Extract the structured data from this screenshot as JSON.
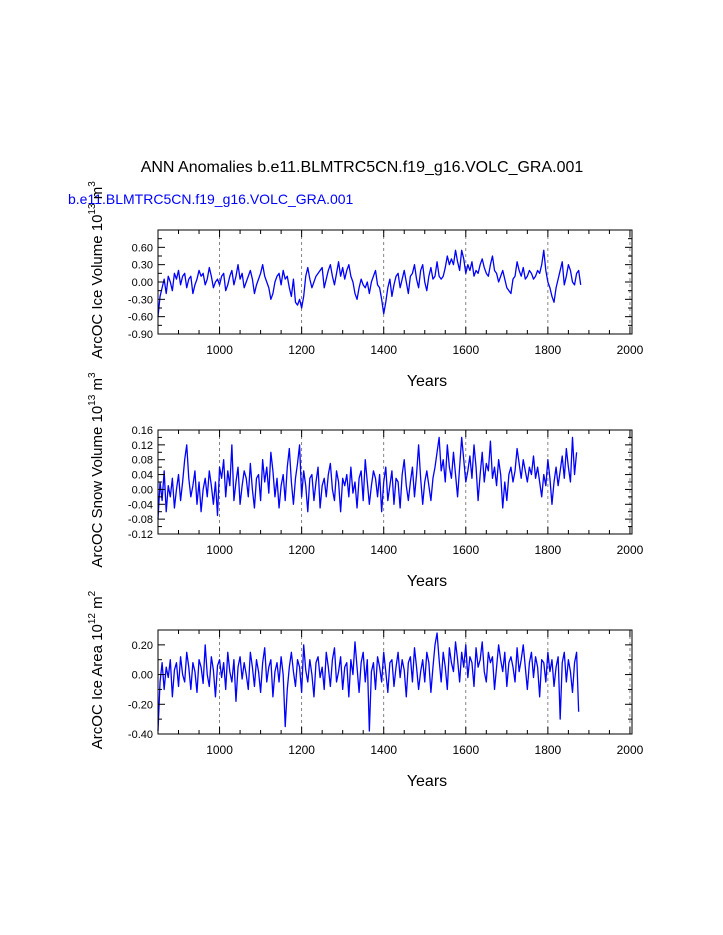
{
  "page": {
    "title": "ANN Anomalies b.e11.BLMTRC5CN.f19_g16.VOLC_GRA.001",
    "subtitle": "b.e11.BLMTRC5CN.f19_g16.VOLC_GRA.001",
    "subtitle_color": "#0000ff"
  },
  "chart_data": [
    {
      "type": "line",
      "name": "ice-volume",
      "ylabel_main": "ArcOC Ice Volume 10",
      "ylabel_exp": "13",
      "ylabel_unit": " m",
      "ylabel_unit_exp": "3",
      "xlabel": "Years",
      "xlim": [
        850,
        2005
      ],
      "ylim": [
        -0.9,
        0.9
      ],
      "xticks": [
        1000,
        1200,
        1400,
        1600,
        1800,
        2000
      ],
      "xtick_labels": [
        "1000",
        "1200",
        "1400",
        "1600",
        "1800",
        "2000"
      ],
      "yticks": [
        -0.9,
        -0.6,
        -0.3,
        0.0,
        0.3,
        0.6
      ],
      "ytick_labels": [
        "-0.90",
        "-0.60",
        "-0.30",
        "0.00",
        "0.30",
        "0.60"
      ],
      "grid": "dashed vertical at x ticks",
      "series": [
        {
          "name": "VOLC_GRA.001",
          "color": "#0000ff",
          "x_start": 850,
          "x_step": 5,
          "values": [
            -0.6,
            -0.25,
            -0.1,
            0.05,
            -0.2,
            0.1,
            0.0,
            -0.15,
            0.15,
            0.05,
            0.2,
            -0.05,
            0.1,
            0.15,
            -0.1,
            0.05,
            0.1,
            -0.2,
            -0.05,
            0.05,
            0.2,
            0.1,
            0.15,
            -0.05,
            0.05,
            0.25,
            0.1,
            -0.1,
            0.0,
            0.05,
            -0.05,
            0.1,
            0.15,
            -0.15,
            -0.05,
            0.1,
            0.2,
            -0.05,
            0.1,
            0.3,
            0.05,
            0.15,
            -0.1,
            0.0,
            0.1,
            0.2,
            0.05,
            -0.2,
            -0.05,
            0.05,
            0.15,
            0.3,
            0.1,
            0.0,
            -0.1,
            -0.3,
            -0.2,
            0.0,
            0.1,
            0.15,
            -0.05,
            0.2,
            0.05,
            0.1,
            -0.1,
            -0.25,
            0.05,
            -0.35,
            -0.4,
            -0.3,
            -0.45,
            -0.25,
            0.1,
            0.25,
            0.05,
            -0.1,
            0.0,
            0.1,
            0.15,
            0.2,
            0.25,
            -0.1,
            0.05,
            0.2,
            0.3,
            0.1,
            -0.05,
            0.15,
            0.35,
            0.1,
            0.25,
            0.05,
            0.2,
            0.3,
            0.1,
            0.0,
            -0.2,
            -0.3,
            -0.1,
            0.05,
            -0.05,
            -0.1,
            0.0,
            -0.2,
            0.0,
            0.1,
            0.2,
            -0.05,
            -0.1,
            -0.3,
            -0.55,
            -0.35,
            -0.1,
            0.05,
            -0.25,
            -0.05,
            0.1,
            0.15,
            -0.1,
            0.05,
            0.2,
            0.0,
            -0.2,
            0.1,
            0.15,
            0.3,
            0.05,
            -0.1,
            0.2,
            0.3,
            0.0,
            -0.15,
            0.1,
            0.25,
            0.05,
            0.1,
            0.35,
            0.1,
            0.05,
            0.1,
            0.25,
            0.45,
            0.3,
            0.4,
            0.3,
            0.55,
            0.35,
            0.2,
            0.55,
            0.4,
            0.15,
            0.3,
            0.2,
            0.35,
            0.1,
            0.2,
            0.15,
            0.3,
            0.4,
            0.25,
            0.15,
            0.1,
            0.3,
            0.45,
            0.2,
            0.15,
            0.0,
            0.1,
            0.2,
            0.05,
            -0.1,
            -0.15,
            -0.2,
            0.05,
            0.1,
            0.35,
            0.2,
            0.1,
            0.25,
            0.05,
            0.1,
            0.2,
            0.15,
            0.05,
            0.1,
            0.2,
            0.15,
            0.3,
            0.55,
            0.2,
            0.0,
            -0.1,
            -0.25,
            -0.35,
            -0.1,
            0.05,
            0.2,
            0.35,
            -0.05,
            0.1,
            0.3,
            0.2,
            0.0,
            -0.05,
            0.15,
            0.2,
            -0.05
          ]
        }
      ]
    },
    {
      "type": "line",
      "name": "snow-volume",
      "ylabel_main": "ArcOC Snow Volume 10",
      "ylabel_exp": "13",
      "ylabel_unit": " m",
      "ylabel_unit_exp": "3",
      "xlabel": "Years",
      "xlim": [
        850,
        2005
      ],
      "ylim": [
        -0.12,
        0.16
      ],
      "xticks": [
        1000,
        1200,
        1400,
        1600,
        1800,
        2000
      ],
      "xtick_labels": [
        "1000",
        "1200",
        "1400",
        "1600",
        "1800",
        "2000"
      ],
      "yticks": [
        -0.12,
        -0.08,
        -0.04,
        0.0,
        0.04,
        0.08,
        0.12,
        0.16
      ],
      "ytick_labels": [
        "-0.12",
        "-0.08",
        "-0.04",
        "0.00",
        "0.04",
        "0.08",
        "0.12",
        "0.16"
      ],
      "grid": "dashed vertical at x ticks",
      "series": [
        {
          "name": "VOLC_GRA.001",
          "color": "#0000ff",
          "x_start": 850,
          "x_step": 5,
          "values": [
            -0.08,
            0.02,
            -0.03,
            0.05,
            -0.06,
            0.01,
            -0.02,
            0.03,
            -0.05,
            0.0,
            0.04,
            -0.03,
            0.02,
            0.08,
            0.12,
            0.03,
            -0.02,
            0.01,
            0.05,
            -0.04,
            0.02,
            -0.06,
            0.0,
            0.03,
            -0.02,
            0.05,
            0.01,
            -0.04,
            0.02,
            -0.07,
            0.06,
            0.03,
            0.08,
            -0.02,
            0.05,
            0.01,
            0.12,
            -0.03,
            0.02,
            0.06,
            -0.04,
            0.01,
            0.05,
            0.03,
            -0.02,
            0.07,
            0.0,
            -0.05,
            0.03,
            0.04,
            -0.03,
            0.08,
            0.02,
            0.06,
            -0.01,
            0.1,
            0.05,
            -0.02,
            0.03,
            -0.05,
            0.01,
            0.04,
            -0.03,
            0.06,
            0.11,
            0.02,
            -0.04,
            0.03,
            0.07,
            0.12,
            -0.02,
            0.05,
            0.01,
            -0.06,
            0.03,
            0.04,
            -0.03,
            0.02,
            0.06,
            -0.05,
            0.01,
            0.03,
            -0.02,
            0.04,
            0.07,
            0.0,
            -0.03,
            0.05,
            0.02,
            -0.06,
            0.03,
            0.01,
            0.04,
            -0.02,
            0.06,
            -0.01,
            0.02,
            -0.05,
            0.03,
            0.05,
            -0.03,
            0.08,
            0.02,
            -0.04,
            0.01,
            0.05,
            0.03,
            -0.02,
            0.04,
            -0.06,
            0.02,
            0.06,
            -0.03,
            0.01,
            0.05,
            -0.04,
            0.03,
            0.02,
            -0.05,
            0.04,
            0.08,
            0.01,
            -0.03,
            0.02,
            0.06,
            -0.02,
            0.04,
            0.12,
            0.03,
            -0.04,
            0.02,
            0.05,
            0.01,
            -0.03,
            0.03,
            0.06,
            0.1,
            0.14,
            0.05,
            0.08,
            0.02,
            0.12,
            0.06,
            0.03,
            0.1,
            0.04,
            -0.02,
            0.06,
            0.14,
            0.08,
            0.02,
            0.05,
            0.09,
            0.03,
            0.12,
            0.06,
            -0.03,
            0.04,
            0.1,
            0.02,
            0.07,
            0.05,
            0.13,
            0.03,
            0.06,
            0.01,
            0.08,
            0.04,
            -0.05,
            0.02,
            -0.03,
            0.04,
            0.06,
            0.02,
            0.05,
            0.11,
            0.07,
            0.03,
            0.08,
            0.05,
            0.02,
            0.06,
            0.04,
            0.09,
            0.03,
            0.06,
            0.02,
            -0.02,
            0.04,
            0.01,
            0.08,
            0.03,
            -0.04,
            0.02,
            0.06,
            0.01,
            0.05,
            0.09,
            0.03,
            0.11,
            0.06,
            0.02,
            0.14,
            0.04,
            0.1
          ]
        }
      ]
    },
    {
      "type": "line",
      "name": "ice-area",
      "ylabel_main": "ArcOC Ice Area 10",
      "ylabel_exp": "12",
      "ylabel_unit": " m",
      "ylabel_unit_exp": "2",
      "xlabel": "Years",
      "xlim": [
        850,
        2005
      ],
      "ylim": [
        -0.4,
        0.3
      ],
      "xticks": [
        1000,
        1200,
        1400,
        1600,
        1800,
        2000
      ],
      "xtick_labels": [
        "1000",
        "1200",
        "1400",
        "1600",
        "1800",
        "2000"
      ],
      "yticks": [
        -0.4,
        -0.2,
        0.0,
        0.2
      ],
      "ytick_labels": [
        "-0.40",
        "-0.20",
        "0.00",
        "0.20"
      ],
      "grid": "dashed vertical at x ticks",
      "series": [
        {
          "name": "VOLC_GRA.001",
          "color": "#0000ff",
          "x_start": 850,
          "x_step": 5,
          "values": [
            -0.38,
            -0.05,
            0.08,
            -0.1,
            0.05,
            -0.02,
            0.1,
            -0.15,
            0.03,
            0.08,
            -0.08,
            0.12,
            0.0,
            -0.05,
            0.15,
            0.05,
            -0.1,
            0.08,
            0.02,
            -0.12,
            0.1,
            0.05,
            -0.06,
            0.2,
            0.0,
            -0.08,
            0.12,
            0.03,
            -0.15,
            0.06,
            0.1,
            -0.02,
            0.08,
            -0.1,
            0.15,
            0.02,
            -0.05,
            0.1,
            -0.18,
            0.05,
            0.12,
            -0.03,
            0.08,
            0.0,
            -0.1,
            0.15,
            0.05,
            -0.08,
            0.1,
            0.02,
            -0.12,
            0.08,
            0.18,
            -0.05,
            0.05,
            0.1,
            -0.15,
            0.02,
            0.08,
            -0.05,
            0.12,
            0.0,
            -0.35,
            -0.1,
            0.05,
            0.15,
            0.02,
            -0.08,
            0.1,
            0.05,
            -0.12,
            0.2,
            0.03,
            -0.05,
            0.1,
            0.0,
            -0.15,
            0.08,
            0.12,
            -0.02,
            0.05,
            -0.1,
            0.15,
            0.05,
            -0.08,
            0.1,
            0.18,
            -0.05,
            0.02,
            0.12,
            -0.1,
            0.05,
            0.08,
            -0.15,
            0.1,
            0.0,
            0.22,
            0.05,
            -0.12,
            0.08,
            0.15,
            -0.05,
            0.1,
            -0.38,
            0.02,
            0.08,
            -0.1,
            0.12,
            0.05,
            -0.05,
            0.15,
            0.02,
            -0.12,
            0.08,
            0.1,
            -0.08,
            0.05,
            0.15,
            -0.02,
            0.1,
            0.03,
            -0.15,
            0.08,
            0.12,
            -0.05,
            0.18,
            0.05,
            -0.1,
            0.02,
            0.1,
            -0.05,
            0.15,
            0.08,
            -0.12,
            0.05,
            0.2,
            0.28,
            0.1,
            -0.05,
            0.15,
            0.05,
            -0.1,
            0.18,
            0.08,
            0.02,
            0.22,
            0.1,
            -0.05,
            0.15,
            0.05,
            0.2,
            -0.02,
            0.12,
            0.08,
            -0.08,
            0.18,
            0.05,
            0.1,
            0.22,
            0.02,
            -0.05,
            0.15,
            0.08,
            0.12,
            -0.1,
            0.05,
            0.2,
            0.1,
            0.02,
            0.15,
            -0.08,
            0.08,
            0.12,
            0.05,
            -0.05,
            0.18,
            0.02,
            0.1,
            0.2,
            0.05,
            -0.1,
            0.08,
            0.15,
            -0.02,
            0.12,
            0.05,
            -0.15,
            0.1,
            0.08,
            -0.05,
            0.15,
            0.02,
            0.1,
            -0.08,
            0.05,
            0.12,
            -0.3,
            0.08,
            0.15,
            -0.05,
            0.1,
            0.02,
            -0.12,
            0.08,
            0.15,
            -0.25
          ]
        }
      ]
    }
  ]
}
